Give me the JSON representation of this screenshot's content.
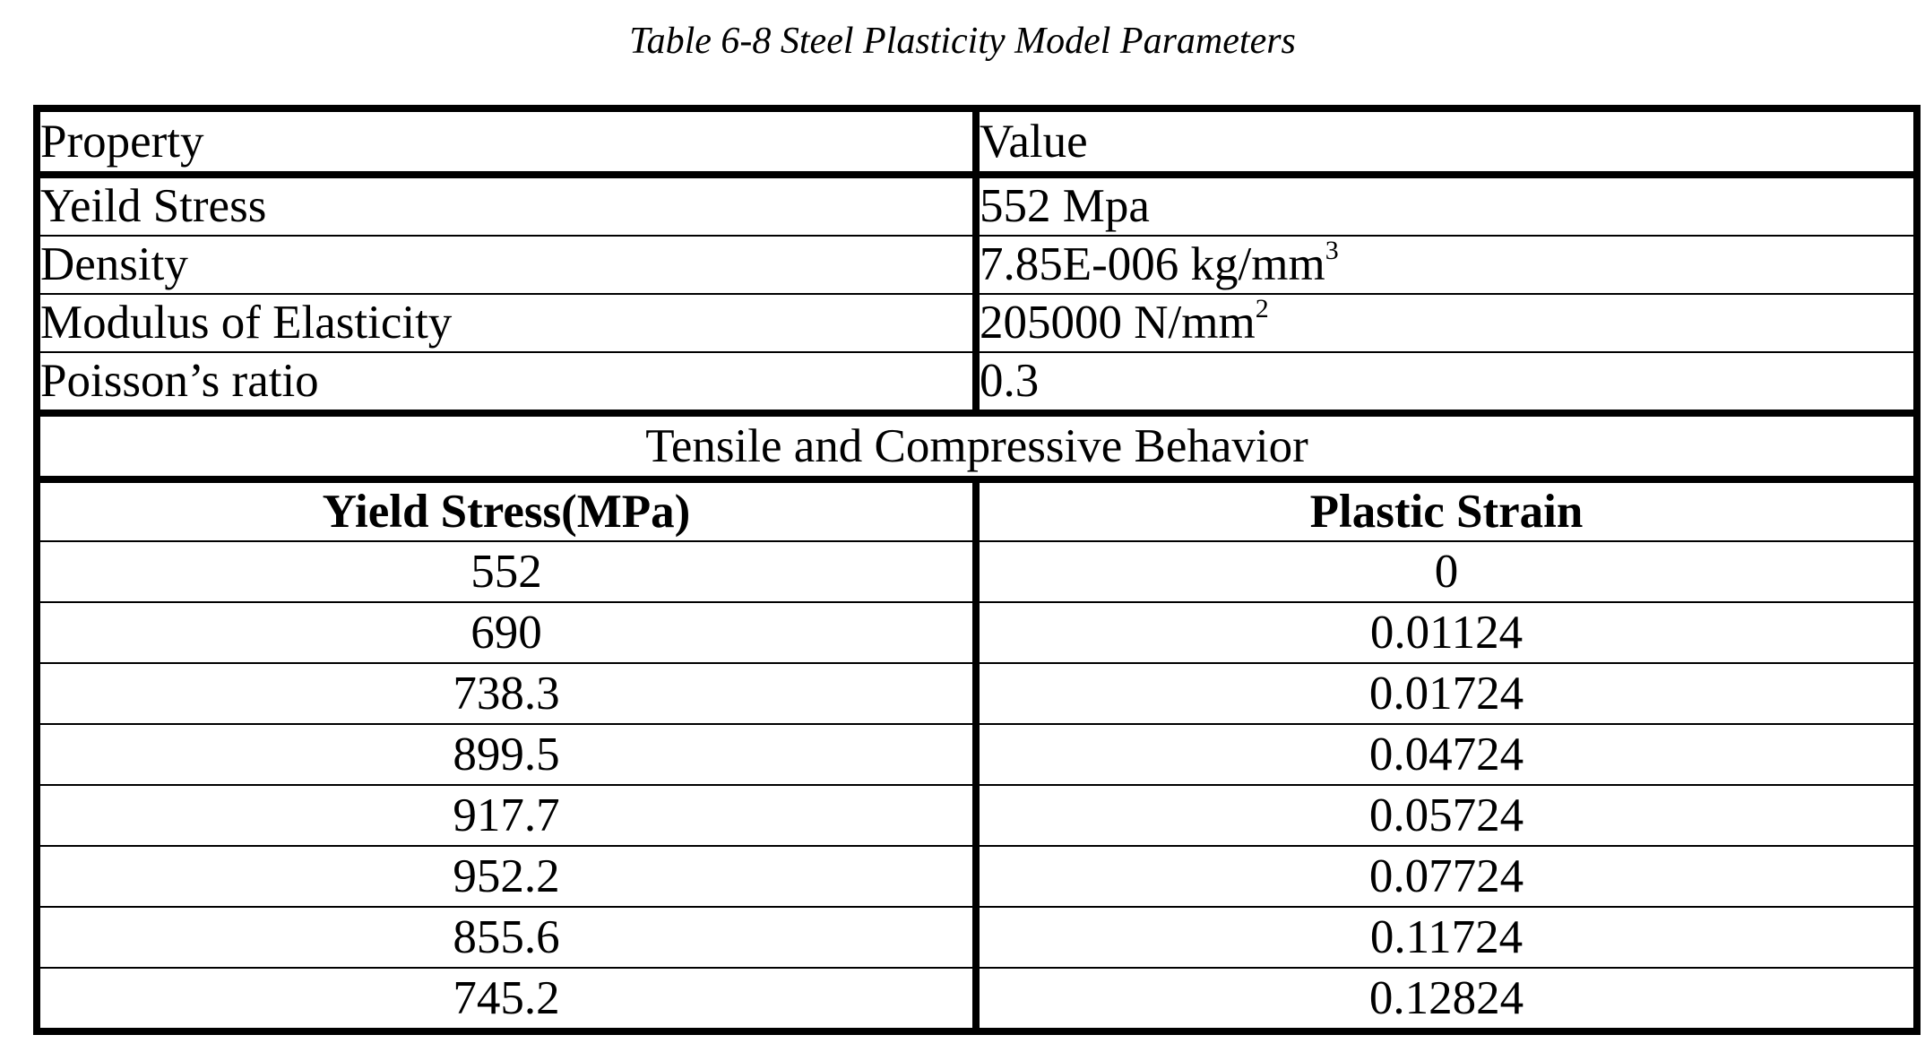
{
  "caption": "Table 6-8 Steel Plasticity Model Parameters",
  "properties_table": {
    "headers": [
      "Property",
      "Value"
    ],
    "rows": [
      {
        "property": "Yeild Stress",
        "value": "552 Mpa",
        "value_sup": ""
      },
      {
        "property": "Density",
        "value": "7.85E-006 kg/mm",
        "value_sup": "3"
      },
      {
        "property": "Modulus of Elasticity",
        "value": "205000 N/mm",
        "value_sup": "2"
      },
      {
        "property": "Poisson’s ratio",
        "value": "0.3",
        "value_sup": ""
      }
    ]
  },
  "behavior_table": {
    "title": "Tensile and Compressive Behavior",
    "headers": [
      "Yield Stress(MPa)",
      "Plastic Strain"
    ],
    "rows": [
      [
        "552",
        "0"
      ],
      [
        "690",
        "0.01124"
      ],
      [
        "738.3",
        "0.01724"
      ],
      [
        "899.5",
        "0.04724"
      ],
      [
        "917.7",
        "0.05724"
      ],
      [
        "952.2",
        "0.07724"
      ],
      [
        "855.6",
        "0.11724"
      ],
      [
        "745.2",
        "0.12824"
      ]
    ]
  }
}
